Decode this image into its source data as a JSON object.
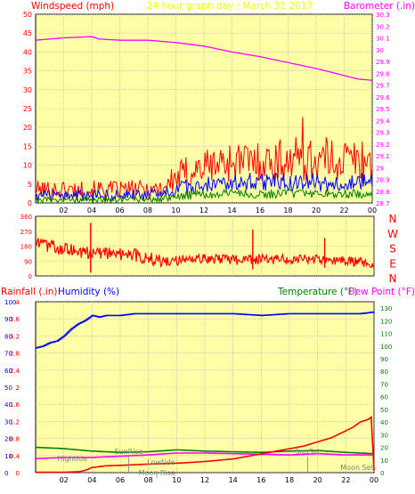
{
  "title": "24 hour graph day : March 31 2017",
  "colors": {
    "panel_bg": "#ffffa8",
    "grid": "#b4b4b4",
    "wind_speed": "#ff0000",
    "wind_avg": "#0000ff",
    "wind_low": "#008000",
    "barometer": "#ff00ff",
    "wind_dir": "#ff0000",
    "rainfall": "#ff0000",
    "humidity": "#0000ff",
    "temperature": "#008000",
    "dew_point": "#ff00ff",
    "title_text": "#ffff00"
  },
  "chart_data": [
    {
      "type": "line",
      "name": "wind_barometer",
      "left_axis_label": "Windspeed (mph)",
      "right_axis_label": "Barometer (.in)",
      "left_ticks": [
        "0",
        "5",
        "10",
        "15",
        "20",
        "25",
        "30",
        "35",
        "40",
        "45",
        "50"
      ],
      "right_ticks": [
        "28.7",
        "28.8",
        "28.9",
        "29",
        "29.1",
        "29.2",
        "29.3",
        "29.4",
        "29.5",
        "29.6",
        "29.7",
        "29.8",
        "29.9",
        "30",
        "30.1",
        "30.2",
        "30.3"
      ],
      "x_ticks": [
        "02",
        "04",
        "06",
        "08",
        "10",
        "12",
        "14",
        "16",
        "18",
        "20",
        "22",
        "00"
      ],
      "x_range_hours": [
        0,
        24
      ],
      "ylim_left": [
        0,
        50
      ],
      "ylim_right": [
        28.7,
        30.3
      ],
      "grid": true,
      "series": [
        {
          "key": "gust",
          "axis": "left",
          "x": [
            0,
            1,
            2,
            3,
            4,
            5,
            6,
            7,
            8,
            9,
            10,
            11,
            12,
            13,
            14,
            15,
            16,
            17,
            18,
            19,
            20,
            21,
            22,
            23,
            24
          ],
          "base": [
            3.5,
            3.5,
            3.5,
            3.5,
            3.5,
            3.5,
            3.5,
            3.5,
            3.5,
            4,
            6.5,
            8.5,
            9.5,
            10.5,
            11,
            11,
            11,
            11,
            11.5,
            11.5,
            11.5,
            11.5,
            11.5,
            11.5,
            11
          ],
          "spread": [
            2.5,
            2.5,
            2.5,
            2.5,
            2.5,
            2.5,
            2.5,
            2.5,
            2.5,
            3,
            4,
            5,
            5,
            5,
            5.5,
            5.5,
            5.5,
            5.5,
            6,
            6,
            6,
            6,
            6,
            6,
            6
          ],
          "peak": 22.8
        },
        {
          "key": "avg",
          "axis": "left",
          "x": [
            0,
            1,
            2,
            3,
            4,
            5,
            6,
            7,
            8,
            9,
            10,
            11,
            12,
            13,
            14,
            15,
            16,
            17,
            18,
            19,
            20,
            21,
            22,
            23,
            24
          ],
          "base": [
            2,
            2,
            2,
            2,
            2,
            2,
            2,
            2,
            2,
            2.5,
            3.5,
            4.5,
            5,
            5.5,
            5.5,
            5.5,
            5.5,
            5.5,
            5.5,
            5.5,
            5.5,
            5.5,
            5.5,
            5.5,
            5.5
          ],
          "spread": [
            1.5,
            1.5,
            1.5,
            1.5,
            1.5,
            1.5,
            1.5,
            1.5,
            1.5,
            1.5,
            2,
            2.5,
            2.5,
            2.5,
            2.5,
            2.5,
            2.5,
            2.5,
            2.5,
            2.5,
            2.5,
            2.5,
            2.5,
            2.5,
            2.5
          ],
          "peak": 0
        },
        {
          "key": "low",
          "axis": "left",
          "x": [
            0,
            1,
            2,
            3,
            4,
            5,
            6,
            7,
            8,
            9,
            10,
            11,
            12,
            13,
            14,
            15,
            16,
            17,
            18,
            19,
            20,
            21,
            22,
            23,
            24
          ],
          "base": [
            0.8,
            0.8,
            0.8,
            0.8,
            0.8,
            0.8,
            0.8,
            0.8,
            0.8,
            1,
            1.6,
            2,
            2.2,
            2.4,
            2.4,
            2.4,
            2.4,
            2.4,
            2.4,
            2.4,
            2.4,
            2.4,
            2.4,
            2.4,
            2.4
          ],
          "spread": [
            0.8,
            0.8,
            0.8,
            0.8,
            0.8,
            0.8,
            0.8,
            0.8,
            0.8,
            0.8,
            1,
            1.2,
            1.2,
            1.2,
            1.2,
            1.2,
            1.2,
            1.2,
            1.2,
            1.2,
            1.2,
            1.2,
            1.2,
            1.2,
            1.2
          ],
          "peak": 0
        },
        {
          "key": "barometer",
          "axis": "right",
          "x": [
            0,
            2,
            4,
            4.5,
            6,
            8,
            10,
            12,
            14,
            16,
            18,
            20,
            22,
            23,
            24
          ],
          "values": [
            30.08,
            30.1,
            30.11,
            30.09,
            30.08,
            30.08,
            30.06,
            30.03,
            29.98,
            29.94,
            29.89,
            29.84,
            29.78,
            29.75,
            29.74
          ]
        }
      ]
    },
    {
      "type": "line",
      "name": "wind_direction",
      "left_ticks": [
        "0",
        "90",
        "180",
        "270",
        "360"
      ],
      "right_ticks": [
        "N",
        "W",
        "S",
        "E",
        "N"
      ],
      "ylim": [
        0,
        360
      ],
      "x_ticks": [
        "02",
        "04",
        "06",
        "08",
        "10",
        "12",
        "14",
        "16",
        "18",
        "20",
        "22",
        "00"
      ],
      "series": [
        {
          "key": "direction",
          "x": [
            0,
            1,
            2,
            3,
            4,
            5,
            6,
            7,
            8,
            9,
            10,
            11,
            12,
            13,
            14,
            15,
            16,
            17,
            18,
            19,
            20,
            21,
            22,
            23,
            24
          ],
          "base": [
            190,
            180,
            165,
            150,
            140,
            138,
            135,
            125,
            110,
            88,
            100,
            102,
            102,
            100,
            95,
            95,
            100,
            98,
            100,
            100,
            98,
            95,
            88,
            85,
            78
          ],
          "spread": [
            40,
            40,
            40,
            40,
            40,
            40,
            40,
            40,
            40,
            35,
            35,
            30,
            30,
            30,
            30,
            30,
            30,
            30,
            30,
            30,
            30,
            30,
            30,
            30,
            30
          ],
          "spikes": [
            {
              "x": 3.9,
              "low": 20,
              "high": 320
            },
            {
              "x": 15.4,
              "low": 40,
              "high": 280
            },
            {
              "x": 20.5,
              "low": 50,
              "high": 230
            }
          ]
        }
      ]
    },
    {
      "type": "line",
      "name": "rain_humidity_temp",
      "left_axis_label": "Rainfall (.in)",
      "humidity_axis_label": "Humidity (%)",
      "temperature_axis_label": "Temperature (°F)",
      "dewpoint_axis_label": "Dew Point (°F)",
      "rain_ticks": [
        "0",
        "0.4",
        "0.8",
        "1.2",
        "1.6",
        "2",
        "2.4",
        "2.8",
        "3.2",
        "3.6",
        "4"
      ],
      "humidity_ticks": [
        "0",
        "10",
        "20",
        "30",
        "40",
        "50",
        "60",
        "70",
        "80",
        "90",
        "100"
      ],
      "temp_ticks": [
        "0",
        "10",
        "20",
        "30",
        "40",
        "50",
        "60",
        "70",
        "80",
        "90",
        "100",
        "110",
        "120",
        "130"
      ],
      "ylim_rain": [
        0,
        4
      ],
      "ylim_humidity": [
        0,
        100
      ],
      "ylim_temp": [
        0,
        135
      ],
      "x_ticks": [
        "02",
        "04",
        "06",
        "08",
        "10",
        "12",
        "14",
        "16",
        "18",
        "20",
        "22",
        "00"
      ],
      "series": [
        {
          "key": "humidity",
          "x": [
            0,
            0.5,
            1,
            1.5,
            2,
            2.5,
            3,
            3.5,
            4,
            4.5,
            5,
            6,
            7,
            8,
            9,
            10,
            12,
            14,
            16,
            18,
            20,
            22,
            23,
            24
          ],
          "values": [
            73,
            74,
            76,
            77,
            80,
            84,
            87,
            89,
            92,
            91,
            92,
            92,
            93,
            93,
            93,
            93,
            93,
            93,
            92,
            93,
            93,
            93,
            93,
            94
          ]
        },
        {
          "key": "rainfall",
          "x": [
            0,
            2,
            3,
            3.5,
            4,
            5,
            6,
            8,
            10,
            12,
            14,
            15,
            16,
            17,
            18,
            19,
            20,
            21,
            22,
            22.5,
            23,
            23.6,
            23.8,
            24
          ],
          "values": [
            0.01,
            0.01,
            0.02,
            0.05,
            0.12,
            0.16,
            0.17,
            0.2,
            0.22,
            0.26,
            0.32,
            0.38,
            0.44,
            0.5,
            0.56,
            0.62,
            0.72,
            0.82,
            0.98,
            1.06,
            1.18,
            1.25,
            1.3,
            0.05
          ]
        },
        {
          "key": "temperature",
          "x": [
            0,
            2,
            4,
            6,
            8,
            10,
            12,
            14,
            16,
            18,
            20,
            22,
            24
          ],
          "values": [
            20,
            19,
            17,
            16,
            16.5,
            18,
            17,
            16.5,
            16,
            17,
            17.5,
            16,
            15
          ]
        },
        {
          "key": "dewpoint",
          "x": [
            0,
            2,
            4,
            6,
            8,
            10,
            12,
            14,
            16,
            18,
            20,
            22,
            24
          ],
          "values": [
            11,
            12,
            12,
            13,
            14,
            15.5,
            15.5,
            15,
            14.5,
            14,
            15,
            14,
            14
          ]
        }
      ],
      "annotations": [
        {
          "label": "Hightide",
          "x": 2.6,
          "marker": false
        },
        {
          "label": "SunRise",
          "x": 6.6,
          "marker": true
        },
        {
          "label": "Lowtide",
          "x": 8.9,
          "marker": false
        },
        {
          "label": "Moon Rise",
          "x": 8.6,
          "marker": true
        },
        {
          "label": "SunSet",
          "x": 19.3,
          "marker": true
        },
        {
          "label": "Moon Set",
          "x": 22.8,
          "marker": true
        }
      ]
    }
  ]
}
